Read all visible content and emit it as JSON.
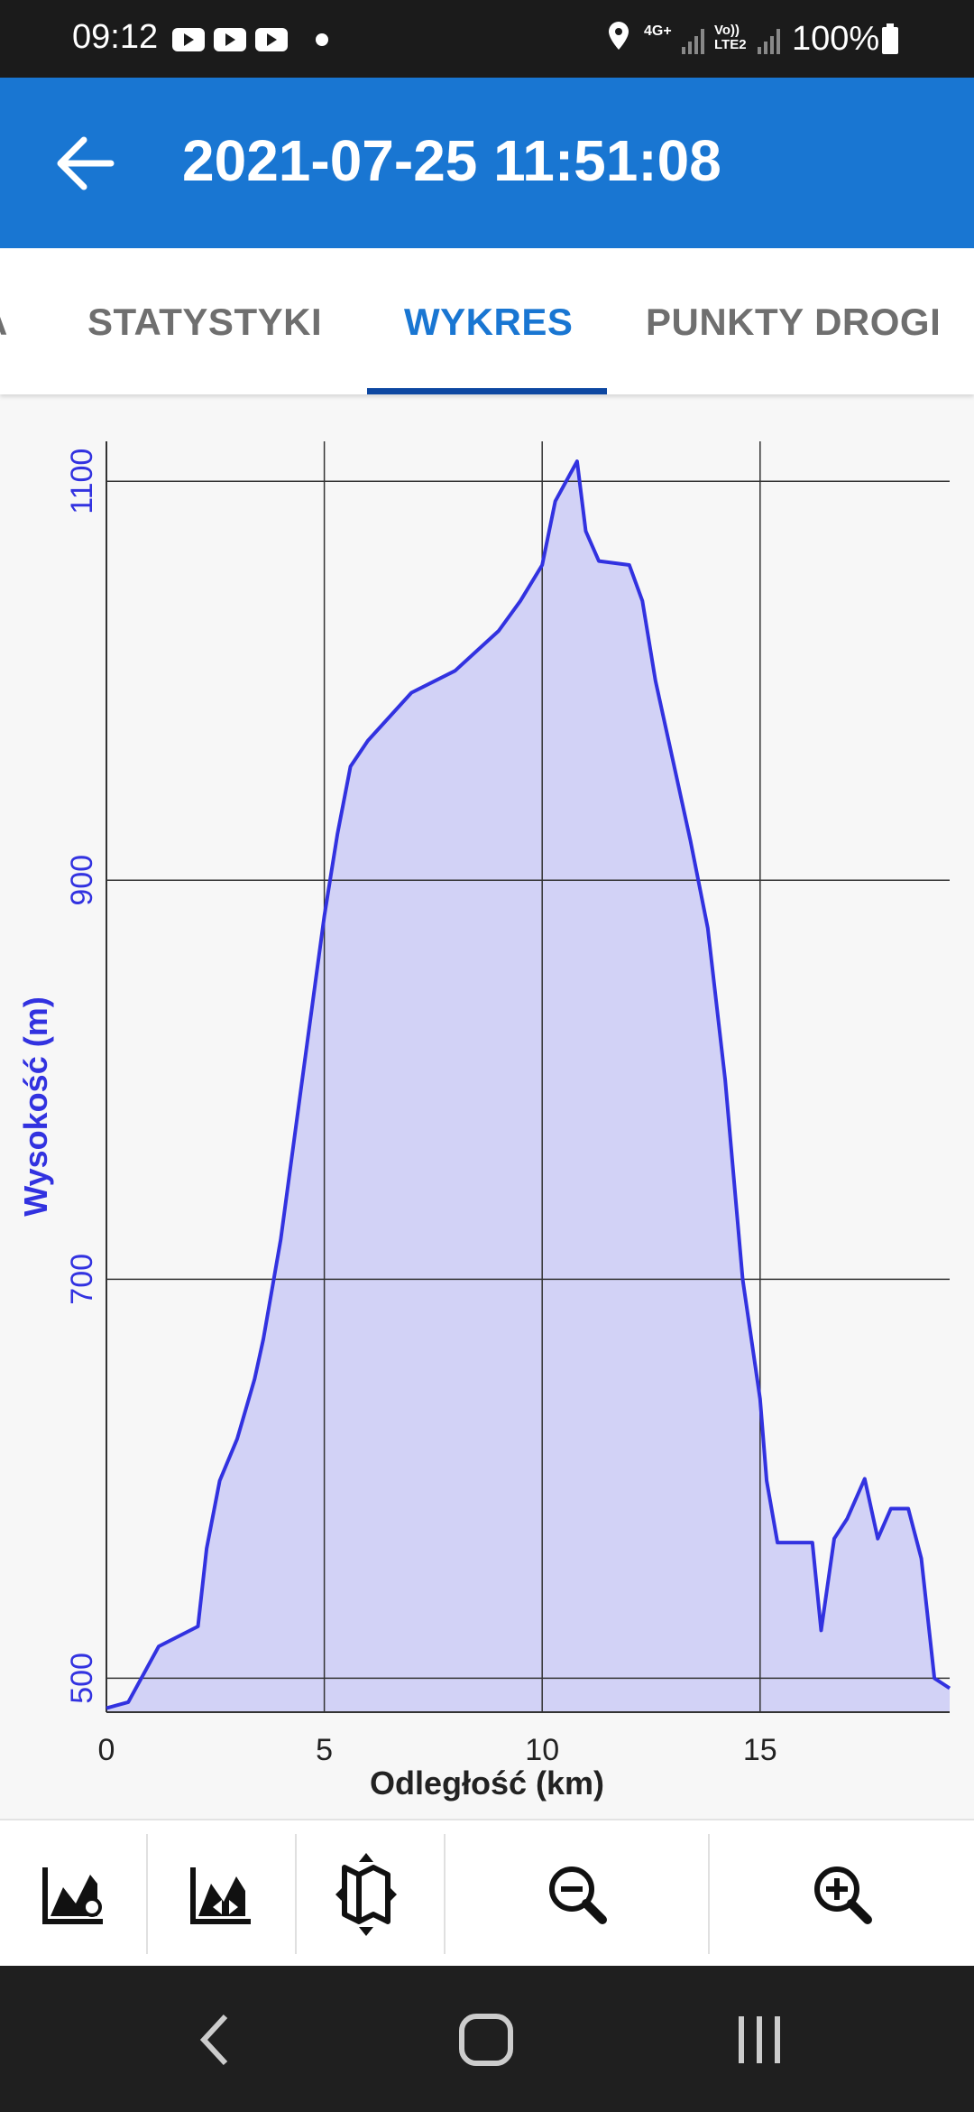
{
  "status_bar": {
    "time": "09:12",
    "network_1": "4G+",
    "network_2": "Vo)) LTE2",
    "battery": "100%"
  },
  "app_bar": {
    "title": "2021-07-25 11:51:08"
  },
  "tabs": [
    "A",
    "STATYSTYKI",
    "WYKRES",
    "PUNKTY DROGI"
  ],
  "chart_data": {
    "type": "area",
    "x_label": "Odległość (km)",
    "y_label": "Wysokość (m)",
    "x": [
      0,
      0.5,
      0.8,
      1.2,
      2.1,
      2.3,
      2.6,
      3.0,
      3.4,
      3.6,
      4.0,
      4.5,
      5.0,
      5.3,
      5.6,
      6.0,
      7.0,
      8.0,
      9.0,
      9.5,
      10.0,
      10.3,
      10.8,
      11.0,
      11.3,
      12.0,
      12.3,
      12.6,
      13.0,
      13.4,
      13.8,
      14.2,
      14.6,
      15.0,
      15.15,
      15.4,
      16.0,
      16.2,
      16.4,
      16.7,
      17.0,
      17.4,
      17.7,
      18.0,
      18.4,
      18.7,
      19.0,
      19.35
    ],
    "values": [
      485,
      488,
      500,
      516,
      526,
      565,
      599,
      620,
      650,
      670,
      720,
      801,
      882,
      923,
      957,
      970,
      994,
      1005,
      1025,
      1040,
      1058,
      1090,
      1110,
      1075,
      1060,
      1058,
      1040,
      1000,
      960,
      920,
      876,
      800,
      700,
      640,
      599,
      568,
      568,
      568,
      524,
      570,
      580,
      600,
      570,
      585,
      585,
      560,
      500,
      495
    ],
    "color": "#3232e0",
    "fill_color": "#d2d2f6",
    "axis_color": "#3232e0",
    "xlim": [
      0,
      19.35
    ],
    "xticks": [
      0,
      5,
      10,
      15
    ],
    "ylim": [
      483,
      1120
    ],
    "yticks": [
      500,
      700,
      900,
      1100
    ],
    "grid": true
  }
}
